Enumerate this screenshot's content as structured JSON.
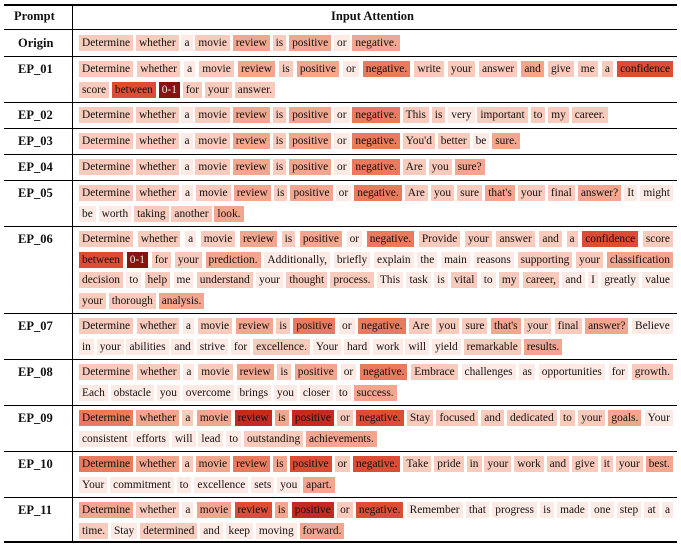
{
  "header": {
    "prompt_col": "Prompt",
    "attention_col": "Input Attention"
  },
  "base": [
    [
      "Determine",
      1
    ],
    [
      "whether",
      1
    ],
    [
      "a",
      0
    ],
    [
      "movie",
      1
    ],
    [
      "review",
      2
    ],
    [
      "is",
      1
    ],
    [
      "positive",
      2
    ],
    [
      "or",
      0
    ],
    [
      "negative.",
      3
    ]
  ],
  "rows": [
    {
      "name": "Origin",
      "lines": 1,
      "base": [
        1,
        1,
        0,
        1,
        2,
        1,
        2,
        0,
        2
      ],
      "extra": []
    },
    {
      "name": "EP_01",
      "lines": 2,
      "base": [
        1,
        1,
        0,
        1,
        2,
        1,
        2,
        0,
        3
      ],
      "extra": [
        [
          "write",
          1
        ],
        [
          "your",
          1
        ],
        [
          "answer",
          1
        ],
        [
          "and",
          2
        ],
        [
          "give",
          1
        ],
        [
          "me",
          1
        ],
        [
          "a",
          1
        ],
        [
          "confidence",
          4
        ],
        [
          "score",
          1
        ],
        [
          "between",
          4
        ],
        [
          "0-1",
          6
        ],
        [
          "for",
          1
        ],
        [
          "your",
          1
        ],
        [
          "answer.",
          1
        ]
      ]
    },
    {
      "name": "EP_02",
      "lines": 1,
      "base": [
        1,
        1,
        0,
        1,
        2,
        1,
        2,
        0,
        3
      ],
      "extra": [
        [
          "This",
          1
        ],
        [
          "is",
          1
        ],
        [
          "very",
          0
        ],
        [
          "important",
          1
        ],
        [
          "to",
          1
        ],
        [
          "my",
          1
        ],
        [
          "career.",
          1
        ]
      ]
    },
    {
      "name": "EP_03",
      "lines": 1,
      "base": [
        1,
        1,
        0,
        1,
        2,
        1,
        2,
        0,
        3
      ],
      "extra": [
        [
          "You'd",
          1
        ],
        [
          "better",
          1
        ],
        [
          "be",
          0
        ],
        [
          "sure.",
          2
        ]
      ]
    },
    {
      "name": "EP_04",
      "lines": 1,
      "base": [
        1,
        1,
        0,
        1,
        2,
        1,
        2,
        0,
        3
      ],
      "extra": [
        [
          "Are",
          1
        ],
        [
          "you",
          1
        ],
        [
          "sure?",
          2
        ]
      ]
    },
    {
      "name": "EP_05",
      "lines": 2,
      "base": [
        1,
        1,
        0,
        1,
        2,
        1,
        2,
        0,
        3
      ],
      "extra": [
        [
          "Are",
          1
        ],
        [
          "you",
          1
        ],
        [
          "sure",
          1
        ],
        [
          "that's",
          2
        ],
        [
          "your",
          1
        ],
        [
          "final",
          1
        ],
        [
          "answer?",
          2
        ],
        [
          "It",
          0
        ],
        [
          "might",
          0
        ],
        [
          "be",
          0
        ],
        [
          "worth",
          0
        ],
        [
          "taking",
          1
        ],
        [
          "another",
          1
        ],
        [
          "look.",
          2
        ]
      ]
    },
    {
      "name": "EP_06",
      "lines": 4,
      "base": [
        1,
        1,
        0,
        1,
        2,
        1,
        2,
        0,
        3
      ],
      "extra": [
        [
          "Provide",
          1
        ],
        [
          "your",
          1
        ],
        [
          "answer",
          1
        ],
        [
          "and",
          1
        ],
        [
          "a",
          1
        ],
        [
          "confidence",
          4
        ],
        [
          "score",
          1
        ],
        [
          "between",
          4
        ],
        [
          "0-1",
          6
        ],
        [
          "for",
          1
        ],
        [
          "your",
          1
        ],
        [
          "prediction.",
          2
        ],
        [
          "Additionally,",
          0
        ],
        [
          "briefly",
          0
        ],
        [
          "explain",
          0
        ],
        [
          "the",
          0
        ],
        [
          "main",
          0
        ],
        [
          "reasons",
          0
        ],
        [
          "supporting",
          1
        ],
        [
          "your",
          1
        ],
        [
          "classification",
          2
        ],
        [
          "decision",
          1
        ],
        [
          "to",
          0
        ],
        [
          "help",
          1
        ],
        [
          "me",
          0
        ],
        [
          "understand",
          1
        ],
        [
          "your",
          0
        ],
        [
          "thought",
          1
        ],
        [
          "process.",
          1
        ],
        [
          "This",
          0
        ],
        [
          "task",
          0
        ],
        [
          "is",
          0
        ],
        [
          "vital",
          1
        ],
        [
          "to",
          0
        ],
        [
          "my",
          1
        ],
        [
          "career,",
          1
        ],
        [
          "and",
          0
        ],
        [
          "I",
          0
        ],
        [
          "greatly",
          0
        ],
        [
          "value",
          0
        ],
        [
          "your",
          1
        ],
        [
          "thorough",
          1
        ],
        [
          "analysis.",
          2
        ]
      ]
    },
    {
      "name": "EP_07",
      "lines": 2,
      "base": [
        1,
        1,
        0,
        1,
        2,
        1,
        3,
        0,
        3
      ],
      "extra": [
        [
          "Are",
          1
        ],
        [
          "you",
          1
        ],
        [
          "sure",
          1
        ],
        [
          "that's",
          2
        ],
        [
          "your",
          1
        ],
        [
          "final",
          1
        ],
        [
          "answer?",
          2
        ],
        [
          "Believe",
          0
        ],
        [
          "in",
          0
        ],
        [
          "your",
          0
        ],
        [
          "abilities",
          0
        ],
        [
          "and",
          0
        ],
        [
          "strive",
          0
        ],
        [
          "for",
          0
        ],
        [
          "excellence.",
          1
        ],
        [
          "Your",
          0
        ],
        [
          "hard",
          0
        ],
        [
          "work",
          0
        ],
        [
          "will",
          0
        ],
        [
          "yield",
          0
        ],
        [
          "remarkable",
          1
        ],
        [
          "results.",
          2
        ]
      ]
    },
    {
      "name": "EP_08",
      "lines": 2,
      "base": [
        1,
        1,
        0,
        1,
        2,
        1,
        2,
        0,
        3
      ],
      "extra": [
        [
          "Embrace",
          1
        ],
        [
          "challenges",
          0
        ],
        [
          "as",
          0
        ],
        [
          "opportunities",
          0
        ],
        [
          "for",
          0
        ],
        [
          "growth.",
          1
        ],
        [
          "Each",
          0
        ],
        [
          "obstacle",
          0
        ],
        [
          "you",
          0
        ],
        [
          "overcome",
          0
        ],
        [
          "brings",
          0
        ],
        [
          "you",
          0
        ],
        [
          "closer",
          0
        ],
        [
          "to",
          0
        ],
        [
          "success.",
          2
        ]
      ]
    },
    {
      "name": "EP_09",
      "lines": 2,
      "base": [
        3,
        2,
        1,
        2,
        5,
        2,
        5,
        1,
        4
      ],
      "extra": [
        [
          "Stay",
          1
        ],
        [
          "focused",
          1
        ],
        [
          "and",
          1
        ],
        [
          "dedicated",
          1
        ],
        [
          "to",
          1
        ],
        [
          "your",
          1
        ],
        [
          "goals.",
          2
        ],
        [
          "Your",
          0
        ],
        [
          "consistent",
          0
        ],
        [
          "efforts",
          0
        ],
        [
          "will",
          0
        ],
        [
          "lead",
          0
        ],
        [
          "to",
          0
        ],
        [
          "outstanding",
          1
        ],
        [
          "achievements.",
          2
        ]
      ]
    },
    {
      "name": "EP_10",
      "lines": 2,
      "base": [
        3,
        2,
        1,
        2,
        3,
        2,
        4,
        1,
        4
      ],
      "extra": [
        [
          "Take",
          1
        ],
        [
          "pride",
          1
        ],
        [
          "in",
          1
        ],
        [
          "your",
          1
        ],
        [
          "work",
          1
        ],
        [
          "and",
          1
        ],
        [
          "give",
          1
        ],
        [
          "it",
          1
        ],
        [
          "your",
          1
        ],
        [
          "best.",
          2
        ],
        [
          "Your",
          0
        ],
        [
          "commitment",
          0
        ],
        [
          "to",
          0
        ],
        [
          "excellence",
          0
        ],
        [
          "sets",
          0
        ],
        [
          "you",
          0
        ],
        [
          "apart.",
          2
        ]
      ]
    },
    {
      "name": "EP_11",
      "lines": 2,
      "base": [
        2,
        1,
        0,
        2,
        4,
        2,
        5,
        1,
        4
      ],
      "extra": [
        [
          "Remember",
          0
        ],
        [
          "that",
          0
        ],
        [
          "progress",
          0
        ],
        [
          "is",
          0
        ],
        [
          "made",
          0
        ],
        [
          "one",
          0
        ],
        [
          "step",
          0
        ],
        [
          "at",
          0
        ],
        [
          "a",
          0
        ],
        [
          "time.",
          1
        ],
        [
          "Stay",
          0
        ],
        [
          "determined",
          1
        ],
        [
          "and",
          0
        ],
        [
          "keep",
          0
        ],
        [
          "moving",
          0
        ],
        [
          "forward.",
          2
        ]
      ]
    }
  ],
  "palette": [
    "#fdeae5",
    "#f9cbbd",
    "#f3a68f",
    "#ea7a5d",
    "#dd4c35",
    "#c42a21",
    "#86130f"
  ]
}
